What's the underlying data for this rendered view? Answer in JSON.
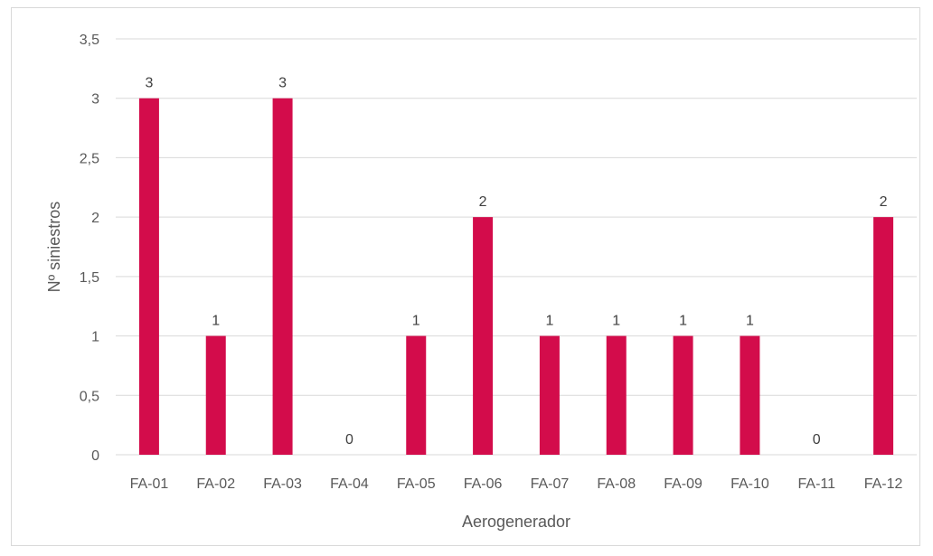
{
  "chart_data": {
    "type": "bar",
    "title": "",
    "xlabel": "Aerogenerador",
    "ylabel": "Nº siniestros",
    "categories": [
      "FA-01",
      "FA-02",
      "FA-03",
      "FA-04",
      "FA-05",
      "FA-06",
      "FA-07",
      "FA-08",
      "FA-09",
      "FA-10",
      "FA-11",
      "FA-12"
    ],
    "series": [
      {
        "values": [
          3,
          1,
          3,
          0,
          1,
          2,
          1,
          1,
          1,
          1,
          0,
          2
        ]
      }
    ],
    "ylim": [
      0,
      3.5
    ],
    "yticks": [
      "0",
      "0,5",
      "1",
      "1,5",
      "2",
      "2,5",
      "3",
      "3,5"
    ],
    "data_labels": [
      "3",
      "1",
      "3",
      "0",
      "1",
      "2",
      "1",
      "1",
      "1",
      "1",
      "0",
      "2"
    ],
    "grid": true,
    "legend": "none",
    "colors": {
      "bar": "#d30c4b",
      "grid": "#d9d9d9"
    }
  }
}
